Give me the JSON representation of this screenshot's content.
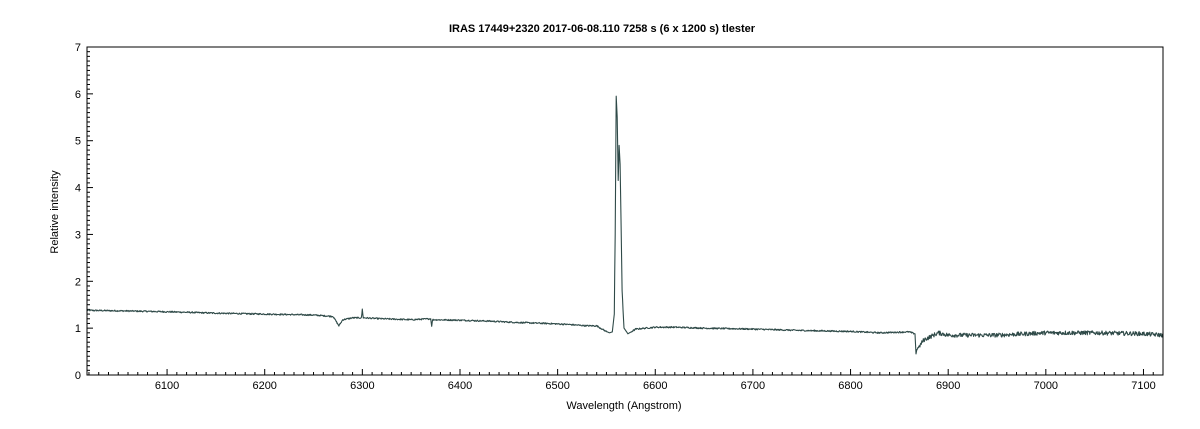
{
  "chart_data": {
    "type": "line",
    "title": "IRAS 17449+2320   2017-06-08.110   7258 s (6 x 1200 s)   tlester",
    "xlabel": "Wavelength (Angstrom)",
    "ylabel": "Relative intensity",
    "xlim": [
      6018,
      7120
    ],
    "ylim": [
      0,
      7
    ],
    "x_ticks": [
      6100,
      6200,
      6300,
      6400,
      6500,
      6600,
      6700,
      6800,
      6900,
      7000,
      7100
    ],
    "y_ticks": [
      0,
      1,
      2,
      3,
      4,
      5,
      6,
      7
    ],
    "grid": false,
    "legend": "none",
    "line_color": "#2f4a48",
    "series": [
      {
        "x": [
          6018,
          6050,
          6100,
          6150,
          6200,
          6250,
          6270,
          6276,
          6280,
          6290,
          6299,
          6300,
          6301,
          6320,
          6350,
          6370,
          6371,
          6372,
          6400,
          6430,
          6460,
          6490,
          6510,
          6530,
          6540,
          6548,
          6553,
          6556,
          6558,
          6559,
          6560,
          6561,
          6562,
          6563,
          6564,
          6565,
          6566,
          6568,
          6572,
          6580,
          6600,
          6620,
          6650,
          6700,
          6750,
          6800,
          6830,
          6860,
          6866,
          6867,
          6868,
          6870,
          6875,
          6880,
          6890,
          6900,
          6950,
          7000,
          7050,
          7100,
          7120
        ],
        "y": [
          1.38,
          1.37,
          1.35,
          1.32,
          1.3,
          1.28,
          1.25,
          1.05,
          1.18,
          1.22,
          1.22,
          1.4,
          1.22,
          1.2,
          1.18,
          1.2,
          1.05,
          1.18,
          1.17,
          1.15,
          1.12,
          1.1,
          1.08,
          1.05,
          1.05,
          0.95,
          0.9,
          0.92,
          1.3,
          3.0,
          5.95,
          5.5,
          4.15,
          4.9,
          4.5,
          3.2,
          1.8,
          1.0,
          0.88,
          0.98,
          1.02,
          1.02,
          1.0,
          0.98,
          0.95,
          0.93,
          0.9,
          0.92,
          0.88,
          0.45,
          0.55,
          0.6,
          0.75,
          0.8,
          0.9,
          0.85,
          0.85,
          0.9,
          0.9,
          0.88,
          0.85
        ]
      }
    ]
  }
}
